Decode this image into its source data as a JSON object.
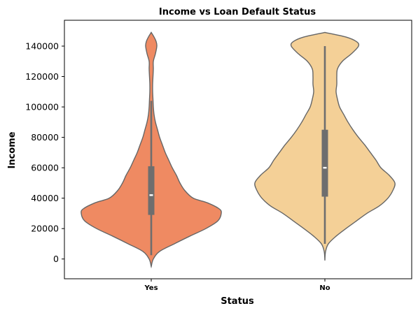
{
  "chart_data": {
    "type": "violin",
    "title": "Income vs Loan Default Status",
    "xlabel": "Status",
    "ylabel": "Income",
    "categories": [
      "Yes",
      "No"
    ],
    "ylim": [
      -13000,
      157000
    ],
    "yticks": [
      0,
      20000,
      40000,
      60000,
      80000,
      100000,
      120000,
      140000
    ],
    "ytick_labels": [
      "0",
      "20000",
      "40000",
      "60000",
      "80000",
      "100000",
      "120000",
      "140000"
    ],
    "grid": false,
    "legend": "none",
    "series": [
      {
        "category": "Yes",
        "color": "#ef8a62",
        "box": {
          "q1": 29000,
          "median": 42000,
          "q3": 61000,
          "whisker_low": 2500,
          "whisker_high": 104000
        },
        "range": [
          -5000,
          149000
        ],
        "density": [
          [
            -5000,
            0.0
          ],
          [
            0,
            0.03
          ],
          [
            5000,
            0.12
          ],
          [
            10000,
            0.33
          ],
          [
            15000,
            0.55
          ],
          [
            20000,
            0.78
          ],
          [
            25000,
            0.95
          ],
          [
            30000,
            1.0
          ],
          [
            33000,
            0.97
          ],
          [
            37000,
            0.8
          ],
          [
            40000,
            0.6
          ],
          [
            45000,
            0.48
          ],
          [
            50000,
            0.41
          ],
          [
            55000,
            0.36
          ],
          [
            60000,
            0.3
          ],
          [
            65000,
            0.25
          ],
          [
            70000,
            0.2
          ],
          [
            75000,
            0.16
          ],
          [
            80000,
            0.12
          ],
          [
            85000,
            0.09
          ],
          [
            90000,
            0.06
          ],
          [
            95000,
            0.04
          ],
          [
            100000,
            0.03
          ],
          [
            105000,
            0.025
          ],
          [
            110000,
            0.02
          ],
          [
            115000,
            0.02
          ],
          [
            120000,
            0.025
          ],
          [
            125000,
            0.03
          ],
          [
            130000,
            0.03
          ],
          [
            135000,
            0.06
          ],
          [
            140000,
            0.08
          ],
          [
            143000,
            0.07
          ],
          [
            146000,
            0.04
          ],
          [
            149000,
            0.0
          ]
        ]
      },
      {
        "category": "No",
        "color": "#f4d097",
        "box": {
          "q1": 41000,
          "median": 60000,
          "q3": 85000,
          "whisker_low": 10000,
          "whisker_high": 140000
        },
        "range": [
          -1000,
          149000
        ],
        "density": [
          [
            -1000,
            0.0
          ],
          [
            5000,
            0.01
          ],
          [
            10000,
            0.05
          ],
          [
            15000,
            0.16
          ],
          [
            20000,
            0.3
          ],
          [
            25000,
            0.45
          ],
          [
            30000,
            0.6
          ],
          [
            35000,
            0.78
          ],
          [
            40000,
            0.9
          ],
          [
            45000,
            0.97
          ],
          [
            50000,
            1.0
          ],
          [
            55000,
            0.92
          ],
          [
            60000,
            0.8
          ],
          [
            65000,
            0.73
          ],
          [
            70000,
            0.65
          ],
          [
            75000,
            0.57
          ],
          [
            80000,
            0.48
          ],
          [
            85000,
            0.4
          ],
          [
            90000,
            0.33
          ],
          [
            95000,
            0.27
          ],
          [
            100000,
            0.21
          ],
          [
            105000,
            0.18
          ],
          [
            110000,
            0.16
          ],
          [
            115000,
            0.17
          ],
          [
            120000,
            0.17
          ],
          [
            125000,
            0.18
          ],
          [
            130000,
            0.25
          ],
          [
            135000,
            0.38
          ],
          [
            140000,
            0.48
          ],
          [
            143000,
            0.45
          ],
          [
            146000,
            0.3
          ],
          [
            149000,
            0.0
          ]
        ]
      }
    ]
  }
}
